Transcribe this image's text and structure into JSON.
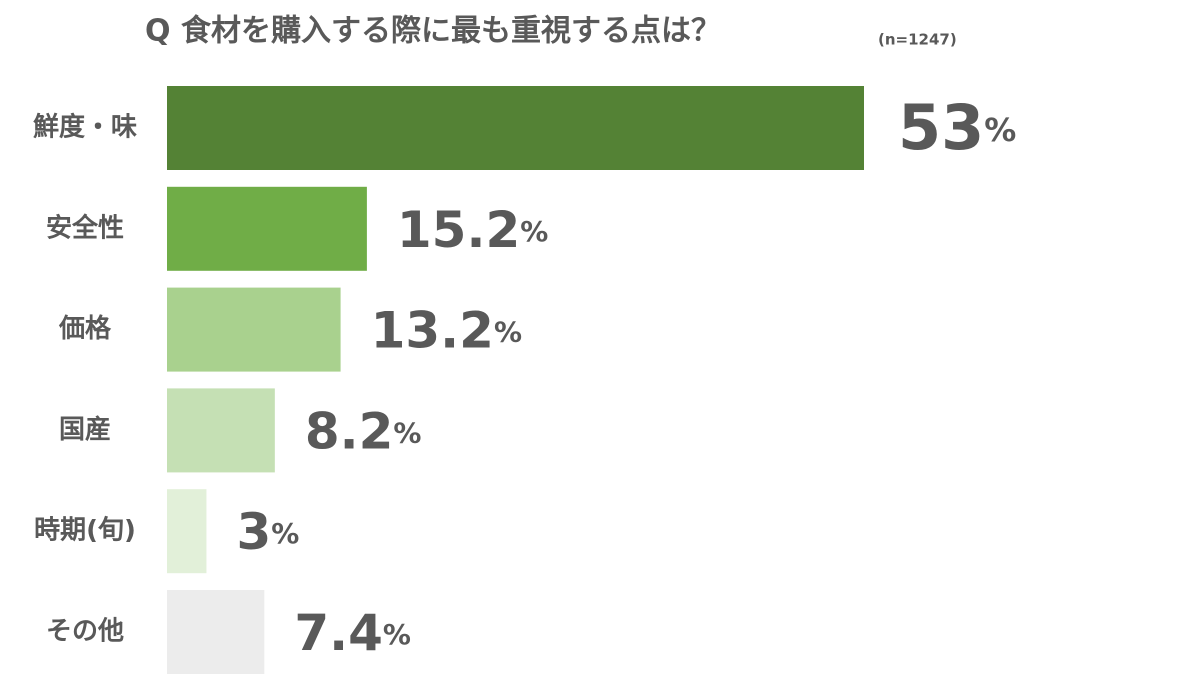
{
  "chart_data": {
    "type": "bar",
    "orientation": "horizontal",
    "title": "Q 食材を購入する際に最も重視する点は？",
    "note": "(n=1247)",
    "categories": [
      "鮮度・味",
      "安全性",
      "価格",
      "国産",
      "時期(旬)",
      "その他"
    ],
    "values": [
      53,
      15.2,
      13.2,
      8.2,
      3,
      7.4
    ],
    "value_labels": [
      "53%",
      "15.2%",
      "13.2%",
      "8.2%",
      "3%",
      "7.4%"
    ],
    "colors": [
      "#548235",
      "#70ad47",
      "#a9d18e",
      "#c5e0b4",
      "#e2f0d9",
      "#ececec"
    ]
  }
}
